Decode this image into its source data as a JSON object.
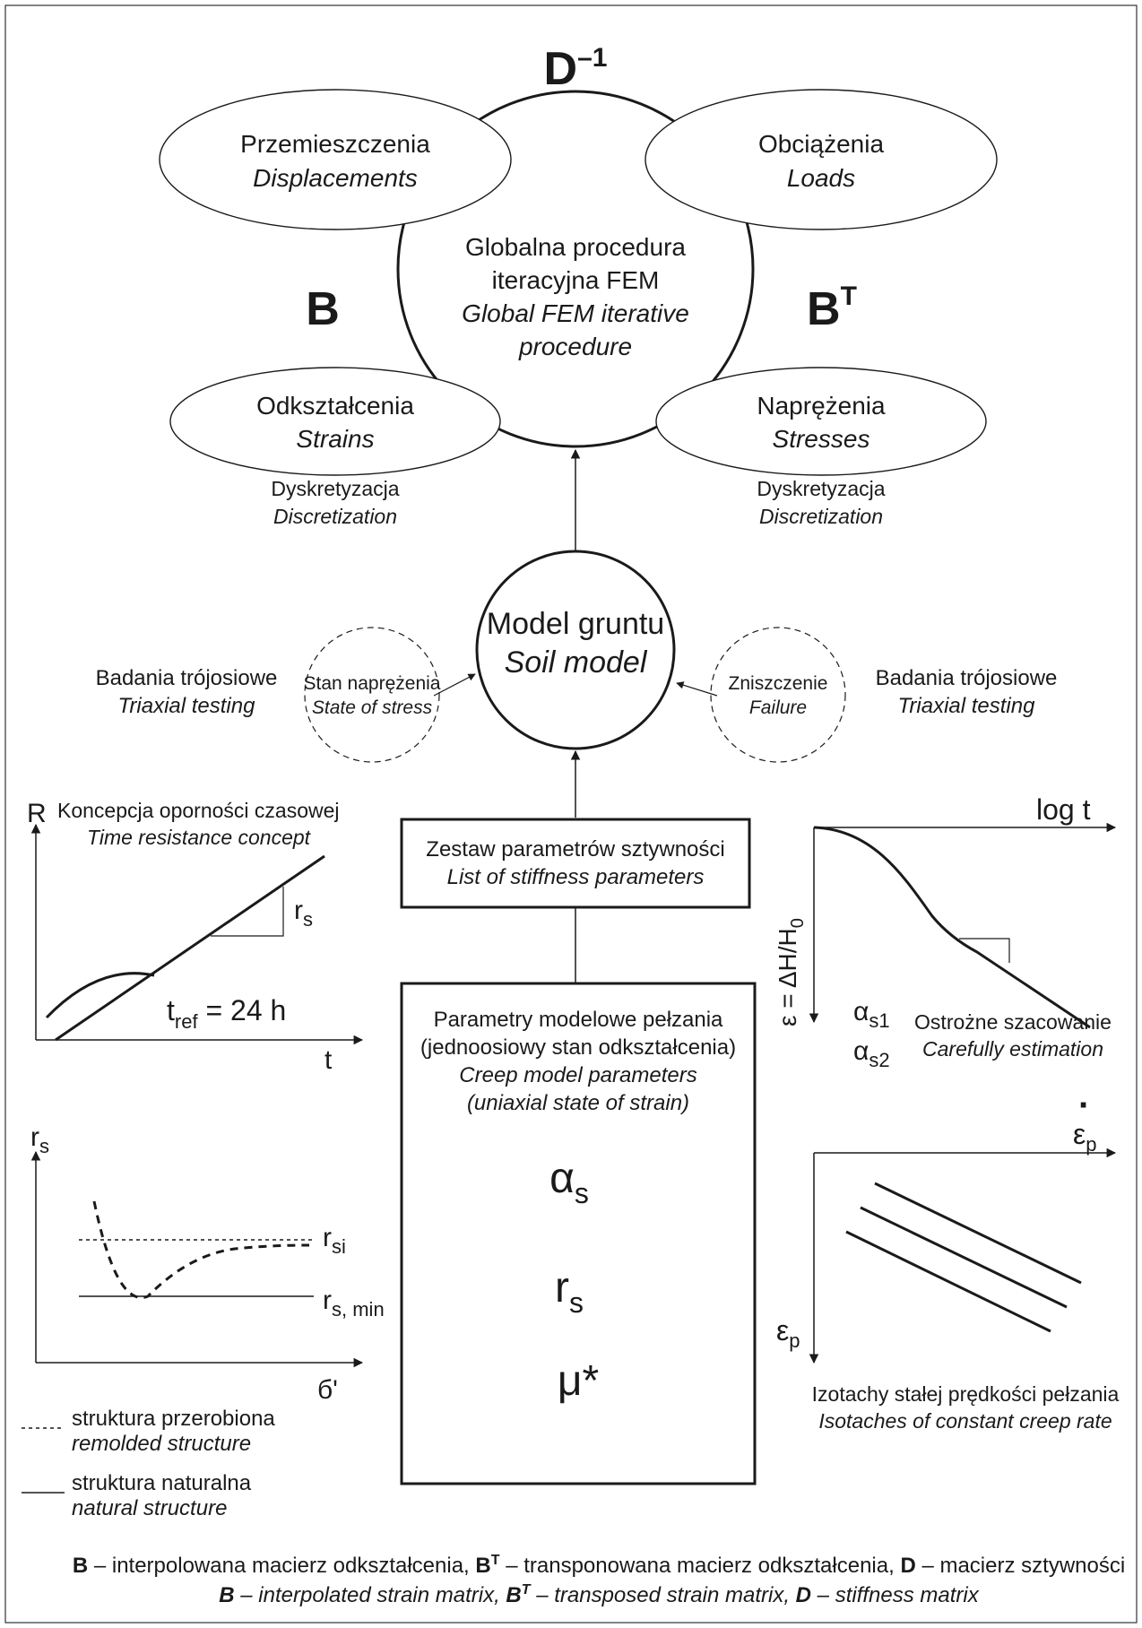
{
  "matrices": {
    "d_inv": {
      "base": "D",
      "sup": "–1"
    },
    "b": "B",
    "bt": {
      "base": "B",
      "sup": "T"
    }
  },
  "top_ellipses": {
    "displacements": {
      "pl": "Przemieszczenia",
      "en": "Displacements"
    },
    "loads": {
      "pl": "Obciążenia",
      "en": "Loads"
    },
    "strains": {
      "pl": "Odkształcenia",
      "en": "Strains"
    },
    "stresses": {
      "pl": "Naprężenia",
      "en": "Stresses"
    }
  },
  "global_procedure": {
    "pl1": "Globalna procedura",
    "pl2": "iteracyjna FEM",
    "en1": "Global FEM iterative",
    "en2": "procedure"
  },
  "discretization": {
    "pl": "Dyskretyzacja",
    "en": "Discretization"
  },
  "soil_model": {
    "pl": "Model gruntu",
    "en": "Soil model"
  },
  "state_of_stress": {
    "pl": "Stan naprężenia",
    "en": "State of stress"
  },
  "failure": {
    "pl": "Zniszczenie",
    "en": "Failure"
  },
  "triaxial": {
    "pl": "Badania trójosiowe",
    "en": "Triaxial testing"
  },
  "stiffness_box": {
    "pl": "Zestaw parametrów sztywności",
    "en": "List of stiffness parameters"
  },
  "creep_box": {
    "pl1": "Parametry modelowe pełzania",
    "pl2": "(jednoosiowy stan odkształcenia)",
    "en1": "Creep model parameters",
    "en2": "(uniaxial state of strain)",
    "p1_base": "α",
    "p1_sub": "s",
    "p2_base": "r",
    "p2_sub": "s",
    "p3": "μ*"
  },
  "time_resistance": {
    "title_pl": "Koncepcja oporności czasowej",
    "title_en": "Time resistance concept",
    "y_axis": "R",
    "x_axis": "t",
    "slope_base": "r",
    "slope_sub": "s",
    "tref_base": "t",
    "tref_sub": "ref",
    "tref_val": " = 24 h"
  },
  "rs_chart": {
    "y_base": "r",
    "y_sub": "s",
    "x_axis": "б'",
    "rsi_base": "r",
    "rsi_sub": "si",
    "rsmin_base": "r",
    "rsmin_sub": "s, min"
  },
  "legend": {
    "remolded_pl": "struktura przerobiona",
    "remolded_en": "remolded structure",
    "natural_pl": "struktura naturalna",
    "natural_en": "natural structure"
  },
  "log_chart": {
    "x_axis": "log t",
    "y_axis_pre": "ε = ΔH/H",
    "y_axis_sub": "0",
    "a1_base": "α",
    "a1_sub": "s1",
    "a2_base": "α",
    "a2_sub": "s2",
    "est_pl": "Ostrożne szacowanie",
    "est_en": "Carefully estimation"
  },
  "isotaches": {
    "y_base": "ε",
    "y_sub": "p",
    "y_dot": "·",
    "x_base": "ε",
    "x_sub": "p",
    "caption_pl": "Izotachy stałej prędkości pełzania",
    "caption_en": "Isotaches of constant creep rate"
  },
  "footer": {
    "b1": "B",
    "t1": " – interpolowana macierz odkształcenia, ",
    "b2": "B",
    "s2": "T",
    "t2": " – transponowana macierz odkształcenia, ",
    "b3": "D",
    "t3": " – macierz sztywności",
    "e_b1": "B",
    "e_t1": " – interpolated strain matrix, ",
    "e_b2": "B",
    "e_s2": "T",
    "e_t2": " – transposed strain matrix, ",
    "e_b3": "D",
    "e_t3": " – stiffness matrix"
  }
}
